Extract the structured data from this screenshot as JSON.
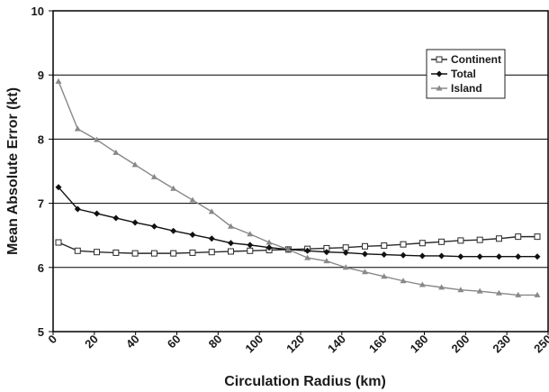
{
  "chart_data": {
    "type": "line",
    "title": "",
    "xlabel": "Circulation Radius (km)",
    "ylabel": "Mean Absolute Error (kt)",
    "ylim": [
      5,
      10
    ],
    "y_ticks": [
      "5",
      "6",
      "7",
      "8",
      "9",
      "10"
    ],
    "x_tick_labels": [
      "0",
      "20",
      "40",
      "60",
      "80",
      "100",
      "120",
      "140",
      "160",
      "180",
      "200",
      "230",
      "250"
    ],
    "grid": "horizontal",
    "legend_position": "top-right",
    "series": [
      {
        "name": "Continent",
        "marker": "square-open",
        "color": "#2a2a2a",
        "values": [
          6.39,
          6.26,
          6.24,
          6.23,
          6.22,
          6.22,
          6.22,
          6.23,
          6.24,
          6.25,
          6.26,
          6.27,
          6.28,
          6.29,
          6.3,
          6.31,
          6.33,
          6.34,
          6.36,
          6.38,
          6.4,
          6.42,
          6.43,
          6.45,
          6.48,
          6.48
        ]
      },
      {
        "name": "Total",
        "marker": "diamond-filled",
        "color": "#111111",
        "values": [
          7.25,
          6.91,
          6.84,
          6.77,
          6.7,
          6.64,
          6.57,
          6.51,
          6.45,
          6.38,
          6.35,
          6.31,
          6.28,
          6.26,
          6.24,
          6.23,
          6.21,
          6.2,
          6.19,
          6.18,
          6.18,
          6.17,
          6.17,
          6.17,
          6.17,
          6.17
        ]
      },
      {
        "name": "Island",
        "marker": "triangle-filled",
        "color": "#888888",
        "values": [
          8.9,
          8.16,
          7.99,
          7.79,
          7.6,
          7.41,
          7.23,
          7.05,
          6.87,
          6.64,
          6.52,
          6.39,
          6.28,
          6.15,
          6.1,
          6.0,
          5.93,
          5.86,
          5.79,
          5.73,
          5.69,
          5.65,
          5.63,
          5.6,
          5.57,
          5.57
        ]
      }
    ]
  }
}
